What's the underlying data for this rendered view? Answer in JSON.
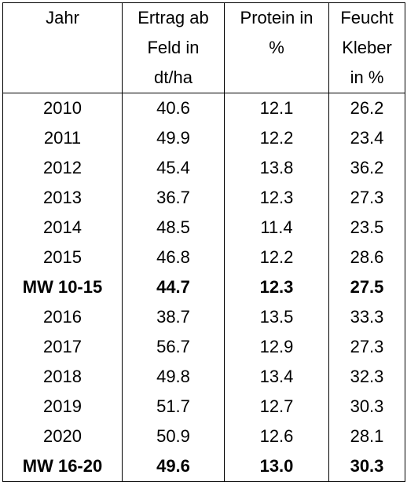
{
  "table": {
    "headers": [
      [
        "Jahr"
      ],
      [
        "Ertrag ab",
        "Feld in",
        "dt/ha"
      ],
      [
        "Protein in",
        "%"
      ],
      [
        "Feucht",
        "Kleber",
        "in %"
      ]
    ],
    "rows": [
      {
        "year": "2010",
        "yield": "40.6",
        "protein": "12.1",
        "gluten": "26.2",
        "bold": false
      },
      {
        "year": "2011",
        "yield": "49.9",
        "protein": "12.2",
        "gluten": "23.4",
        "bold": false
      },
      {
        "year": "2012",
        "yield": "45.4",
        "protein": "13.8",
        "gluten": "36.2",
        "bold": false
      },
      {
        "year": "2013",
        "yield": "36.7",
        "protein": "12.3",
        "gluten": "27.3",
        "bold": false
      },
      {
        "year": "2014",
        "yield": "48.5",
        "protein": "11.4",
        "gluten": "23.5",
        "bold": false
      },
      {
        "year": "2015",
        "yield": "46.8",
        "protein": "12.2",
        "gluten": "28.6",
        "bold": false
      },
      {
        "year": "MW 10-15",
        "yield": "44.7",
        "protein": "12.3",
        "gluten": "27.5",
        "bold": true
      },
      {
        "year": "2016",
        "yield": "38.7",
        "protein": "13.5",
        "gluten": "33.3",
        "bold": false
      },
      {
        "year": "2017",
        "yield": "56.7",
        "protein": "12.9",
        "gluten": "27.3",
        "bold": false
      },
      {
        "year": "2018",
        "yield": "49.8",
        "protein": "13.4",
        "gluten": "32.3",
        "bold": false
      },
      {
        "year": "2019",
        "yield": "51.7",
        "protein": "12.7",
        "gluten": "30.3",
        "bold": false
      },
      {
        "year": "2020",
        "yield": "50.9",
        "protein": "12.6",
        "gluten": "28.1",
        "bold": false
      },
      {
        "year": "MW 16-20",
        "yield": "49.6",
        "protein": "13.0",
        "gluten": "30.3",
        "bold": true
      }
    ]
  }
}
